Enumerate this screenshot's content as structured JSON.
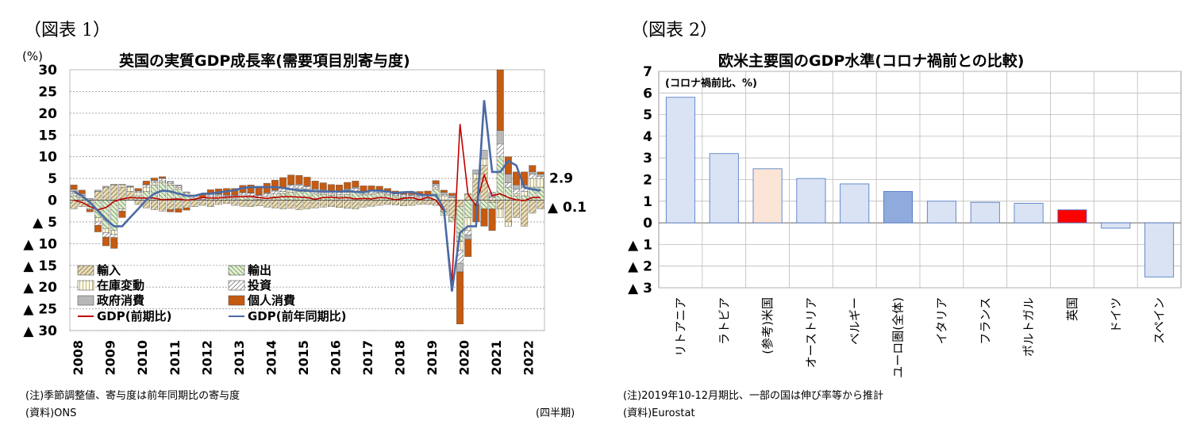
{
  "figures": [
    {
      "label": "（図表 1）",
      "note1": "(注)季節調整値、寄与度は前年同期比の寄与度",
      "source": "(資料)ONS",
      "period_label": "(四半期)"
    },
    {
      "label": "（図表 2）",
      "note1": "(注)2019年10-12月期比、一部の国は伸び率等から推計",
      "source": "(資料)Eurostat"
    }
  ],
  "chart_data": [
    {
      "type": "bar",
      "stacked": true,
      "title": "英国の実質GDP成長率(需要項目別寄与度)",
      "ylabel": "(%)",
      "ylim": [
        -30,
        30
      ],
      "yticks": [
        30,
        25,
        20,
        15,
        10,
        5,
        0,
        -5,
        -10,
        -15,
        -20,
        -25,
        -30
      ],
      "ytick_labels": [
        "30",
        "25",
        "20",
        "15",
        "10",
        "5",
        "0",
        "▲ 5",
        "▲ 10",
        "▲ 15",
        "▲ 20",
        "▲ 25",
        "▲ 30"
      ],
      "x_years": [
        "2008",
        "2009",
        "2010",
        "2011",
        "2012",
        "2013",
        "2014",
        "2015",
        "2016",
        "2017",
        "2018",
        "2019",
        "2020",
        "2021",
        "2022"
      ],
      "quarters": 59,
      "stack_series": [
        {
          "name": "輸入",
          "key": "imports",
          "color": "#c8b27a",
          "pattern": "hatchA",
          "values": [
            -2,
            -1.5,
            -1,
            2,
            3,
            3.5,
            3,
            2,
            -1,
            -1.8,
            -2.2,
            -2.5,
            -2.2,
            -2,
            -1.8,
            -1.5,
            -1.2,
            -1.5,
            -1,
            -0.8,
            -1.2,
            -1.4,
            -1.5,
            -1.3,
            -1.6,
            -1.8,
            -2,
            -1.9,
            -2.2,
            -2,
            -1.8,
            -1.6,
            -1.5,
            -1.7,
            -1.9,
            -2,
            -1.6,
            -1.4,
            -1.2,
            -1,
            -1.1,
            -1.3,
            -1.2,
            -1,
            -1,
            -1.2,
            -2.5,
            -4,
            -1.5,
            1.5,
            5,
            8,
            -0.5,
            -2,
            -5,
            -4,
            -6,
            -3,
            -2
          ]
        },
        {
          "name": "輸出",
          "key": "exports",
          "color": "#a9c98a",
          "pattern": "hatchB",
          "values": [
            1,
            0.5,
            -0.5,
            -4,
            -6.5,
            -7,
            -2,
            0,
            1,
            2,
            3.5,
            4,
            3.5,
            2.5,
            1,
            0.3,
            0,
            0.5,
            0.6,
            0.4,
            0.3,
            0.8,
            0.5,
            0.2,
            0.5,
            0.8,
            1.5,
            1.8,
            2,
            2,
            1.4,
            1.3,
            1.1,
            0.9,
            1.3,
            1.8,
            1.2,
            1.3,
            1.6,
            1.2,
            0.8,
            0.6,
            0.4,
            0.2,
            0.4,
            2.5,
            -1,
            -1,
            -8,
            -4,
            -1,
            -2,
            -1.5,
            10,
            3,
            1,
            1,
            3,
            3
          ]
        },
        {
          "name": "在庫変動",
          "key": "inventory",
          "color": "#fff4c8",
          "pattern": "hatchC",
          "values": [
            0.5,
            0.3,
            -0.5,
            -1,
            -1,
            -0.8,
            0.5,
            1,
            0.8,
            1,
            0.5,
            0.4,
            0.3,
            0.4,
            0.5,
            0.3,
            0.2,
            0.4,
            0.3,
            0.2,
            0.3,
            0.4,
            0.5,
            0.3,
            0.4,
            0.6,
            0.5,
            0.8,
            0.7,
            0.5,
            0.5,
            0.4,
            0.3,
            0.4,
            0.5,
            0.3,
            0.2,
            0.3,
            0.2,
            0.2,
            0.3,
            0.2,
            0.3,
            0.4,
            0.3,
            0.5,
            1,
            0.5,
            -2,
            -3,
            1,
            1.5,
            0.5,
            -2,
            -1,
            0.5,
            1,
            2,
            2
          ]
        },
        {
          "name": "投資",
          "key": "investment",
          "color": "#ffffff",
          "pattern": "hatchD",
          "values": [
            0.5,
            0.3,
            -0.2,
            -0.8,
            -1,
            -0.8,
            -0.5,
            0.1,
            0.3,
            0.5,
            0.4,
            0.6,
            0.4,
            0.4,
            0.3,
            0.3,
            0.3,
            0.4,
            0.3,
            0.4,
            0.5,
            0.5,
            0.6,
            0.6,
            0.6,
            0.7,
            0.8,
            0.8,
            0.7,
            0.6,
            0.5,
            0.5,
            0.4,
            0.5,
            0.6,
            0.6,
            0.5,
            0.5,
            0.4,
            0.4,
            0.3,
            0.4,
            0.4,
            0.3,
            0.3,
            0.4,
            0.3,
            0.2,
            -3,
            -1,
            0,
            0,
            0.3,
            3,
            1,
            1,
            1,
            1,
            0.5
          ]
        },
        {
          "name": "政府消費",
          "key": "government",
          "color": "#b8b8b8",
          "pattern": "solid",
          "values": [
            0.5,
            0.4,
            0.4,
            0.3,
            0.2,
            0.2,
            0.2,
            0.2,
            0.1,
            0.1,
            0.2,
            0.1,
            0.1,
            0.2,
            0.1,
            0.1,
            0.1,
            0.1,
            0.2,
            0.2,
            0.1,
            0.1,
            0.1,
            0.1,
            0.2,
            0.2,
            0.1,
            0.2,
            0.3,
            0.2,
            0.2,
            0.2,
            0.2,
            0.2,
            0.2,
            0.3,
            0.2,
            0.2,
            0.2,
            0.1,
            0.1,
            0.2,
            0.2,
            0.3,
            0.3,
            0.4,
            0.5,
            0.4,
            -2,
            -1,
            1,
            2,
            1,
            3,
            2,
            1,
            0.5,
            0.5,
            0.5
          ]
        },
        {
          "name": "個人消費",
          "key": "consumption",
          "color": "#c55a11",
          "pattern": "solid",
          "values": [
            1,
            0.8,
            -0.5,
            -1.5,
            -2,
            -2.5,
            -1.5,
            0,
            0.5,
            0.8,
            0.5,
            0.3,
            -0.5,
            -0.8,
            -0.5,
            0.2,
            0.8,
            1,
            1.2,
            1.5,
            1.5,
            1.6,
            1.8,
            2,
            2.2,
            2.3,
            2.3,
            2.2,
            2,
            2,
            1.8,
            1.6,
            1.6,
            1.5,
            1.5,
            1.4,
            1.2,
            1,
            0.8,
            0.8,
            0.6,
            0.6,
            0.7,
            0.8,
            0.8,
            0.7,
            0.5,
            0.5,
            -12,
            -4,
            -4,
            -4,
            -5,
            14,
            4,
            3,
            3,
            1.5,
            0.5
          ]
        }
      ],
      "line_series": [
        {
          "name": "GDP(前期比)",
          "key": "gdp_qoq",
          "color": "#c00000",
          "values": [
            0,
            -0.5,
            -1.5,
            -2.2,
            -1.7,
            -0.3,
            0.3,
            0.6,
            0.5,
            0.5,
            0.5,
            0.1,
            0.2,
            0.3,
            0,
            0.2,
            0.6,
            0.5,
            0.5,
            0.7,
            0.8,
            0.8,
            0.9,
            0.6,
            0.4,
            0.6,
            0.8,
            0.8,
            0.7,
            0.6,
            0.2,
            0.6,
            0.7,
            0.5,
            0.6,
            0.3,
            0.4,
            0.3,
            0.6,
            0.5,
            0.1,
            0.4,
            0.6,
            0.1,
            0.7,
            0,
            -2.5,
            -19,
            17.5,
            1.3,
            -1.2,
            5.8,
            1,
            1.5,
            0.6,
            0.1,
            -0.1,
            0.6,
            0.6
          ]
        },
        {
          "name": "GDP(前年同期比)",
          "key": "gdp_yoy",
          "color": "#4a6aa5",
          "values": [
            2,
            1,
            -0.5,
            -2.5,
            -4.5,
            -6,
            -6,
            -4,
            -2,
            0,
            1.5,
            2.2,
            2,
            1.5,
            1,
            1,
            1.5,
            1.5,
            1.8,
            2,
            2.3,
            2.8,
            3,
            3,
            3,
            3,
            2.8,
            2.5,
            2.3,
            2.2,
            2,
            2,
            2,
            2,
            2.1,
            1.9,
            1.8,
            2.2,
            2.2,
            2,
            1.6,
            1.8,
            1.9,
            1.3,
            1.1,
            1.2,
            -2,
            -21,
            -7.5,
            -6,
            -6,
            23,
            6.5,
            6.5,
            9,
            8,
            2.9,
            2.5,
            2.2
          ]
        }
      ],
      "annotations": [
        {
          "text": "2.9"
        },
        {
          "text": "▲ 0.1"
        }
      ],
      "legend_placement": "bottom-left"
    },
    {
      "type": "bar",
      "title": "欧米主要国のGDP水準(コロナ禍前との比較)",
      "unit_note": "(コロナ禍前比、%)",
      "ylim": [
        -3,
        7
      ],
      "yticks": [
        7,
        6,
        5,
        4,
        3,
        2,
        1,
        0,
        -1,
        -2,
        -3
      ],
      "ytick_labels": [
        "7",
        "6",
        "5",
        "4",
        "3",
        "2",
        "1",
        "0",
        "▲ 1",
        "▲ 2",
        "▲ 3"
      ],
      "categories": [
        "リトアニア",
        "ラトビア",
        "(参考)米国",
        "オーストリア",
        "ベルギー",
        "ユーロ圏(全体)",
        "イタリア",
        "フランス",
        "ポルトガル",
        "英国",
        "ドイツ",
        "スペイン"
      ],
      "values": [
        5.8,
        3.2,
        2.5,
        2.05,
        1.8,
        1.45,
        1.0,
        0.95,
        0.9,
        0.6,
        -0.25,
        -2.5
      ],
      "colors": [
        "#dae3f3",
        "#dae3f3",
        "#fbe5d6",
        "#dae3f3",
        "#dae3f3",
        "#8faadc",
        "#dae3f3",
        "#dae3f3",
        "#dae3f3",
        "#ff0000",
        "#dae3f3",
        "#dae3f3"
      ],
      "grid": true
    }
  ]
}
